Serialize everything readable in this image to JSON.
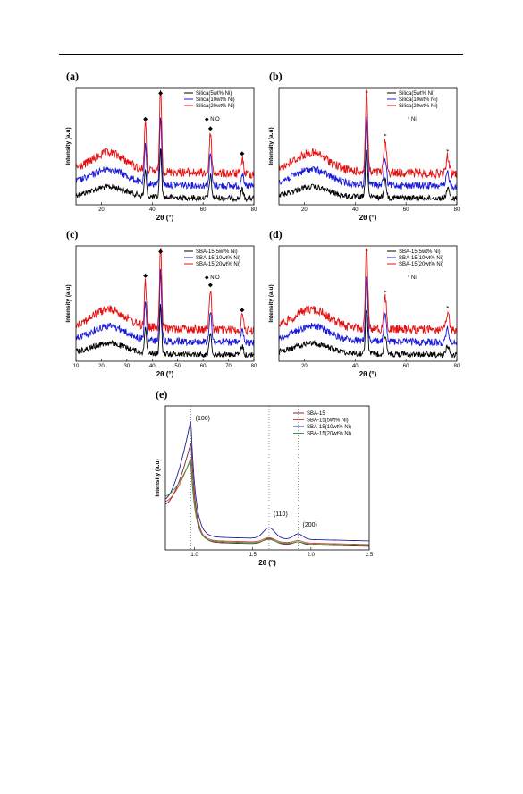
{
  "chart_data": [
    {
      "id": "a",
      "type": "line",
      "panel_label": "(a)",
      "xlabel": "2θ (°)",
      "ylabel": "Intensity (a.u)",
      "xlim": [
        10,
        80
      ],
      "xticks": [
        20,
        40,
        60,
        80
      ],
      "x_tick_labels": [
        "20",
        "40",
        "60",
        "80"
      ],
      "legend_position": "top-right",
      "series": [
        {
          "name": "Silica(5wt% Ni)",
          "color": "#000000"
        },
        {
          "name": "Silica(10wt% Ni)",
          "color": "#1a1adc"
        },
        {
          "name": "Silica(20wt% Ni)",
          "color": "#e61010"
        }
      ],
      "marker_legend": {
        "symbol": "◆",
        "label": "NiO"
      },
      "peaks": [
        {
          "x": 37.3,
          "marker": "◆"
        },
        {
          "x": 43.3,
          "marker": "◆"
        },
        {
          "x": 62.9,
          "marker": "◆"
        },
        {
          "x": 75.4,
          "marker": "◆"
        }
      ]
    },
    {
      "id": "b",
      "type": "line",
      "panel_label": "(b)",
      "xlabel": "2θ (°)",
      "ylabel": "Intensity (a.u)",
      "xlim": [
        10,
        80
      ],
      "xticks": [
        20,
        40,
        60,
        80
      ],
      "x_tick_labels": [
        "20",
        "40",
        "60",
        "80"
      ],
      "legend_position": "top-right",
      "series": [
        {
          "name": "Silica(5wt% Ni)",
          "color": "#000000"
        },
        {
          "name": "Silica(10wt% Ni)",
          "color": "#1a1adc"
        },
        {
          "name": "Silica(20wt% Ni)",
          "color": "#e61010"
        }
      ],
      "marker_legend": {
        "symbol": "*",
        "label": "Ni"
      },
      "peaks": [
        {
          "x": 44.5,
          "marker": "*"
        },
        {
          "x": 51.8,
          "marker": "*"
        },
        {
          "x": 76.4,
          "marker": "*"
        }
      ]
    },
    {
      "id": "c",
      "type": "line",
      "panel_label": "(c)",
      "xlabel": "2θ (°)",
      "ylabel": "Intensity (a.u)",
      "xlim": [
        10,
        80
      ],
      "xticks": [
        10,
        20,
        30,
        40,
        50,
        60,
        70,
        80
      ],
      "x_tick_labels": [
        "10",
        "20",
        "30",
        "40",
        "50",
        "60",
        "70",
        "80"
      ],
      "legend_position": "top-right",
      "series": [
        {
          "name": "SBA-15(5wt% Ni)",
          "color": "#000000"
        },
        {
          "name": "SBA-15(10wt% Ni)",
          "color": "#1a1adc"
        },
        {
          "name": "SBA-15(20wt% Ni)",
          "color": "#e61010"
        }
      ],
      "marker_legend": {
        "symbol": "◆",
        "label": "NiO"
      },
      "peaks": [
        {
          "x": 37.3,
          "marker": "◆"
        },
        {
          "x": 43.3,
          "marker": "◆"
        },
        {
          "x": 62.9,
          "marker": "◆"
        },
        {
          "x": 75.4,
          "marker": "◆"
        }
      ]
    },
    {
      "id": "d",
      "type": "line",
      "panel_label": "(d)",
      "xlabel": "2θ (°)",
      "ylabel": "Intensity (a.u)",
      "xlim": [
        10,
        80
      ],
      "xticks": [
        20,
        40,
        60,
        80
      ],
      "x_tick_labels": [
        "20",
        "40",
        "60",
        "80"
      ],
      "legend_position": "top-right",
      "series": [
        {
          "name": "SBA-15(5wt% Ni)",
          "color": "#000000"
        },
        {
          "name": "SBA-15(10wt% Ni)",
          "color": "#1a1adc"
        },
        {
          "name": "SBA-15(20wt% Ni)",
          "color": "#e61010"
        }
      ],
      "marker_legend": {
        "symbol": "*",
        "label": "Ni"
      },
      "peaks": [
        {
          "x": 44.5,
          "marker": "*"
        },
        {
          "x": 51.8,
          "marker": "*"
        },
        {
          "x": 76.4,
          "marker": "*"
        }
      ]
    },
    {
      "id": "e",
      "type": "line",
      "panel_label": "(e)",
      "xlabel": "2θ (°)",
      "ylabel": "Intensity (a.u)",
      "xlim": [
        0.75,
        2.5
      ],
      "xticks": [
        1.0,
        1.5,
        2.0,
        2.5
      ],
      "x_tick_labels": [
        "1.0",
        "1.5",
        "2.0",
        "2.5"
      ],
      "legend_position": "top-right",
      "series": [
        {
          "name": "SBA-15",
          "color": "#7a2a2a"
        },
        {
          "name": "SBA-15(5wt% Ni)",
          "color": "#e04040"
        },
        {
          "name": "SBA-15(10wt% Ni)",
          "color": "#2020a0"
        },
        {
          "name": "SBA-15(20wt% Ni)",
          "color": "#2e9a3a"
        }
      ],
      "reflections": [
        {
          "x": 0.97,
          "label": "(100)"
        },
        {
          "x": 1.64,
          "label": "(110)"
        },
        {
          "x": 1.89,
          "label": "(200)"
        }
      ]
    }
  ]
}
